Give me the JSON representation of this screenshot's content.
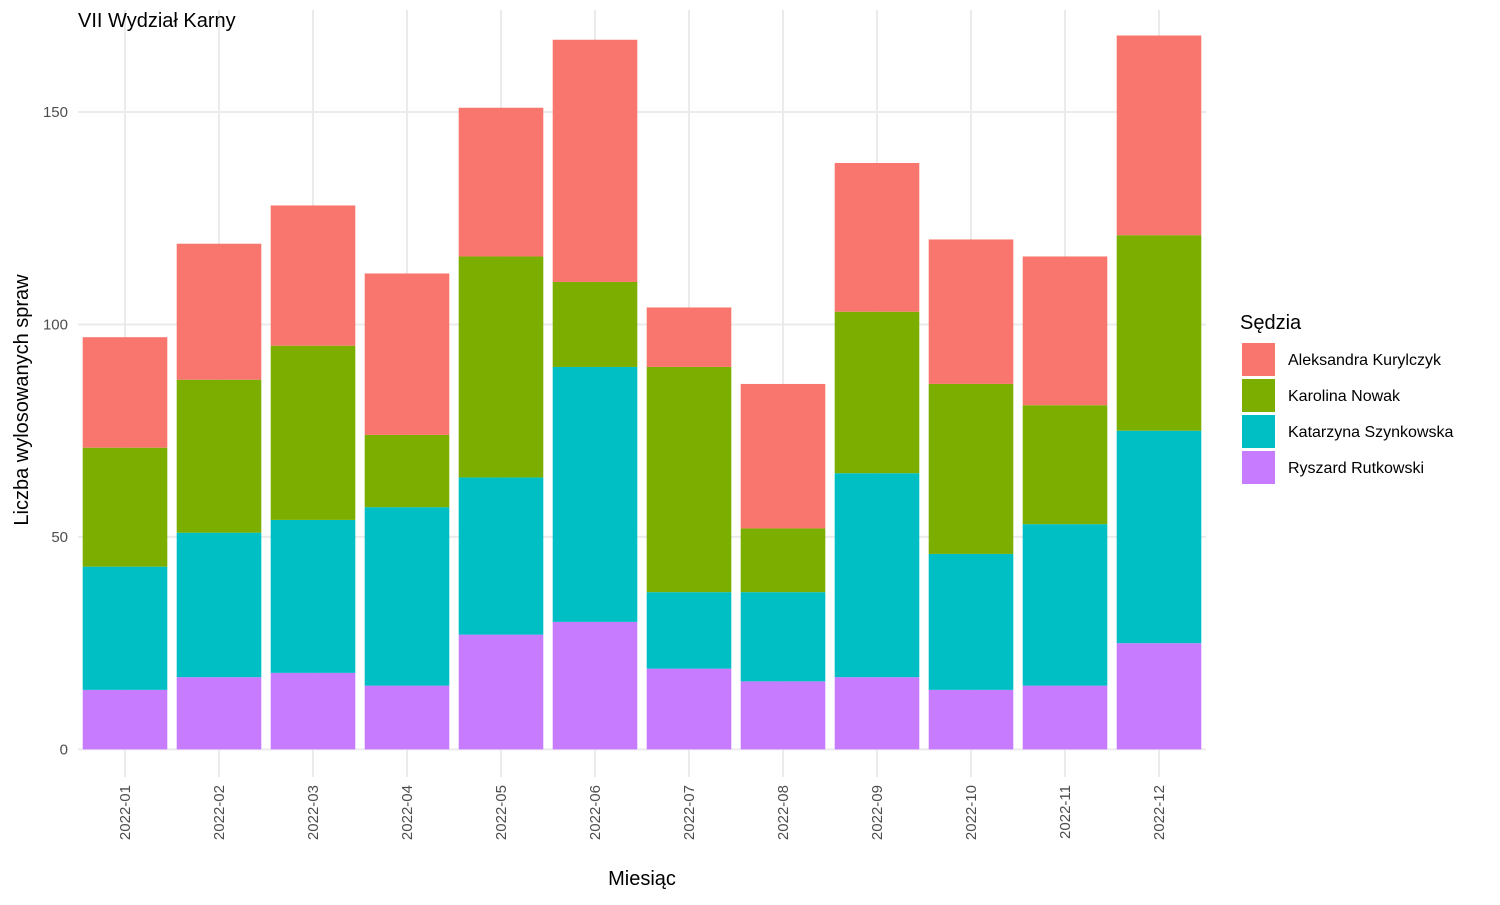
{
  "chart_data": {
    "type": "bar",
    "stacked": true,
    "title": "VII Wydział Karny",
    "xlabel": "Miesiąc",
    "ylabel": "Liczba wylosowanych spraw",
    "ylim": [
      -6.5,
      174
    ],
    "yticks": [
      0,
      50,
      100,
      150
    ],
    "grid": true,
    "legend_position": "right",
    "legend_title": "Sędzia",
    "categories": [
      "2022-01",
      "2022-02",
      "2022-03",
      "2022-04",
      "2022-05",
      "2022-06",
      "2022-07",
      "2022-08",
      "2022-09",
      "2022-10",
      "2022-11",
      "2022-12"
    ],
    "series": [
      {
        "name": "Aleksandra Kurylczyk",
        "color": "#F8766D",
        "values": [
          26,
          32,
          33,
          38,
          35,
          57,
          14,
          34,
          35,
          34,
          35,
          47
        ]
      },
      {
        "name": "Karolina Nowak",
        "color": "#7CAE00",
        "values": [
          28,
          36,
          41,
          17,
          52,
          20,
          53,
          15,
          38,
          40,
          28,
          46
        ]
      },
      {
        "name": "Katarzyna Szynkowska",
        "color": "#00BFC4",
        "values": [
          29,
          34,
          36,
          42,
          37,
          60,
          18,
          21,
          48,
          32,
          38,
          50
        ]
      },
      {
        "name": "Ryszard Rutkowski",
        "color": "#C77CFF",
        "values": [
          14,
          17,
          18,
          15,
          27,
          30,
          19,
          16,
          17,
          14,
          15,
          25
        ]
      }
    ]
  }
}
